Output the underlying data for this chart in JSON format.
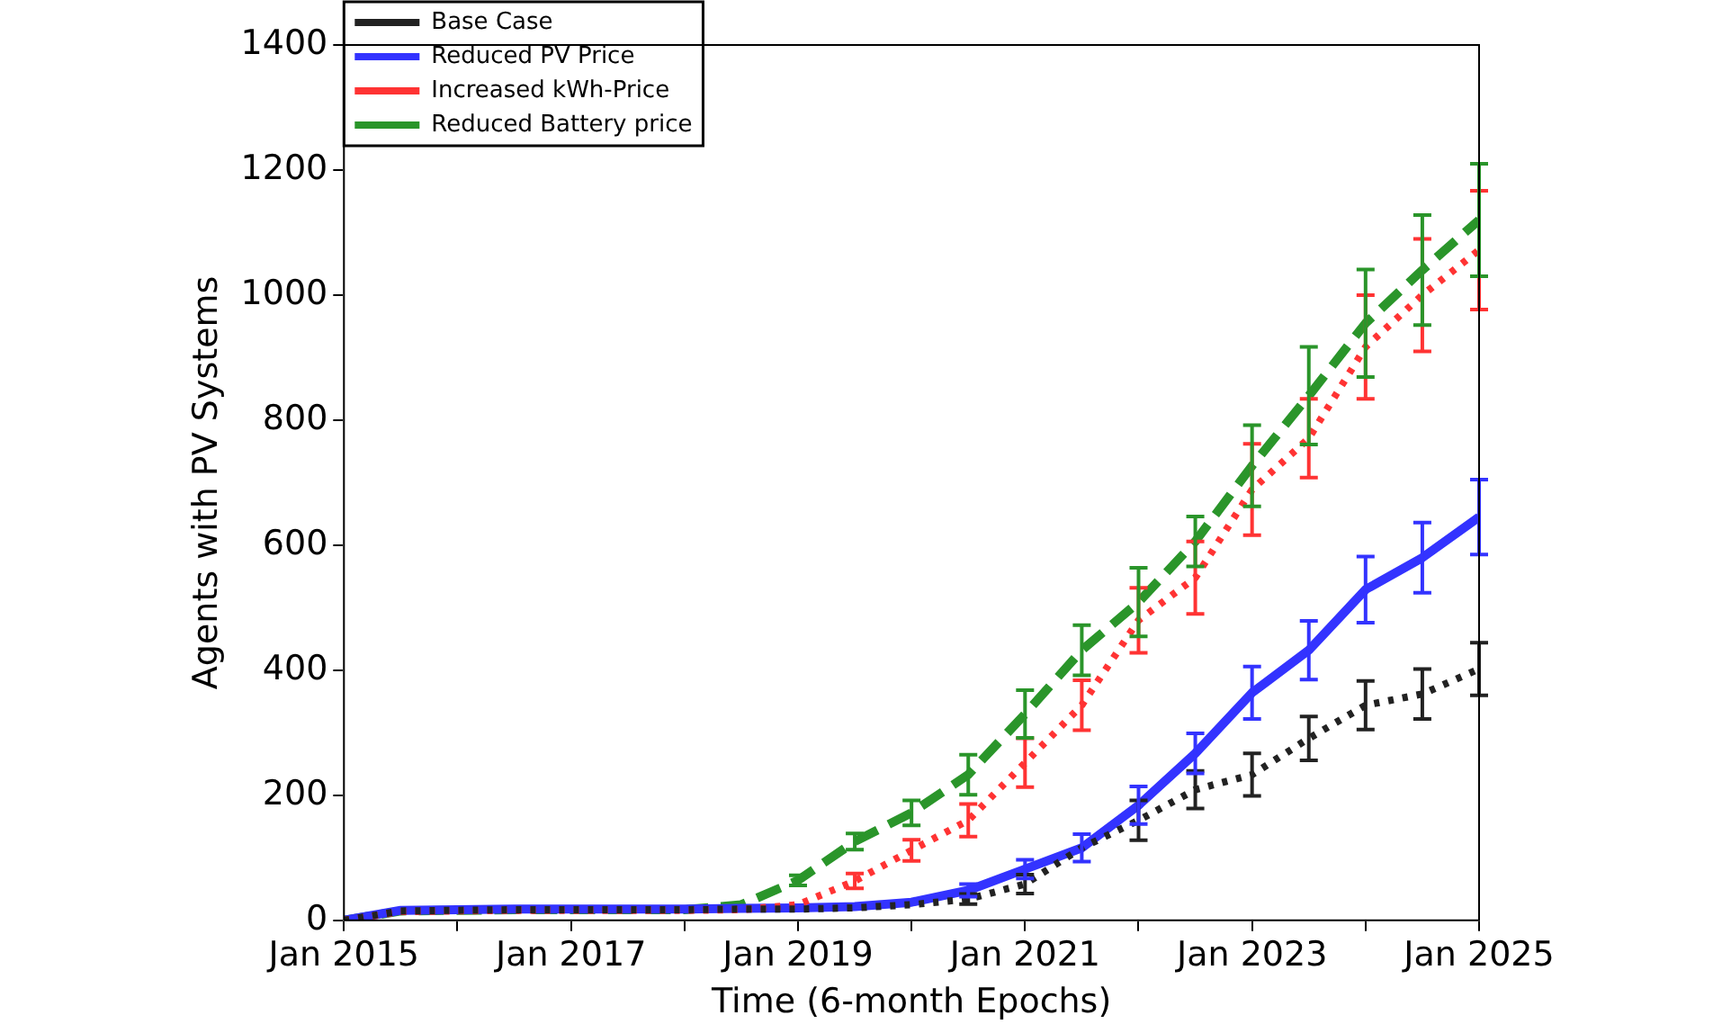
{
  "chart_data": {
    "type": "line",
    "xlabel": "Time (6-month Epochs)",
    "ylabel": "Agents with PV Systems",
    "x": [
      "2015-01",
      "2015-07",
      "2016-01",
      "2016-07",
      "2017-01",
      "2017-07",
      "2018-01",
      "2018-07",
      "2019-01",
      "2019-07",
      "2020-01",
      "2020-07",
      "2021-01",
      "2021-07",
      "2022-01",
      "2022-07",
      "2023-01",
      "2023-07",
      "2024-01",
      "2024-07",
      "2025-01"
    ],
    "series": [
      {
        "name": "Base Case",
        "color": "#222222",
        "line_style": "dotted",
        "values": [
          0,
          15,
          16,
          17,
          17,
          17,
          17,
          18,
          18,
          20,
          25,
          34,
          58,
          116,
          160,
          209,
          233,
          291,
          344,
          362,
          402
        ],
        "errors": [
          null,
          null,
          null,
          null,
          null,
          null,
          null,
          null,
          null,
          null,
          null,
          8,
          15,
          null,
          32,
          30,
          34,
          35,
          39,
          40,
          42
        ]
      },
      {
        "name": "Reduced PV Price",
        "color": "#3333ff",
        "line_style": "solid",
        "values": [
          0,
          16,
          17,
          18,
          18,
          18,
          18,
          19,
          20,
          22,
          29,
          48,
          82,
          116,
          184,
          267,
          364,
          432,
          529,
          580,
          645
        ],
        "errors": [
          null,
          null,
          null,
          null,
          null,
          null,
          null,
          null,
          null,
          null,
          null,
          10,
          15,
          22,
          30,
          32,
          42,
          47,
          53,
          56,
          60
        ]
      },
      {
        "name": "Increased kWh-Price",
        "color": "#ff3333",
        "line_style": "dotted",
        "values": [
          0,
          14,
          15,
          16,
          16,
          16,
          16,
          17,
          25,
          63,
          112,
          160,
          252,
          344,
          480,
          548,
          689,
          771,
          917,
          1000,
          1072
        ],
        "errors": [
          null,
          null,
          null,
          null,
          null,
          null,
          null,
          null,
          null,
          12,
          17,
          26,
          39,
          40,
          52,
          58,
          73,
          63,
          83,
          90,
          95
        ]
      },
      {
        "name": "Reduced Battery price",
        "color": "#2a952a",
        "line_style": "dashed",
        "values": [
          0,
          15,
          16,
          17,
          17,
          17,
          17,
          25,
          64,
          126,
          172,
          233,
          330,
          432,
          509,
          606,
          727,
          839,
          955,
          1040,
          1120
        ],
        "errors": [
          null,
          null,
          null,
          null,
          null,
          null,
          null,
          null,
          8,
          13,
          20,
          32,
          38,
          40,
          55,
          40,
          65,
          78,
          86,
          88,
          90
        ]
      }
    ],
    "xlim": [
      "2015-01",
      "2025-01"
    ],
    "xticks": [
      {
        "value": "2015-01",
        "label": "Jan 2015"
      },
      {
        "value": "2016-01",
        "label": null
      },
      {
        "value": "2017-01",
        "label": "Jan 2017"
      },
      {
        "value": "2018-01",
        "label": null
      },
      {
        "value": "2019-01",
        "label": "Jan 2019"
      },
      {
        "value": "2020-01",
        "label": null
      },
      {
        "value": "2021-01",
        "label": "Jan 2021"
      },
      {
        "value": "2022-01",
        "label": null
      },
      {
        "value": "2023-01",
        "label": "Jan 2023"
      },
      {
        "value": "2024-01",
        "label": null
      },
      {
        "value": "2025-01",
        "label": "Jan 2025"
      }
    ],
    "ylim": [
      0,
      1400
    ],
    "yticks": [
      0,
      200,
      400,
      600,
      800,
      1000,
      1200,
      1400
    ],
    "grid": false,
    "legend": "top left",
    "marker": "none"
  }
}
